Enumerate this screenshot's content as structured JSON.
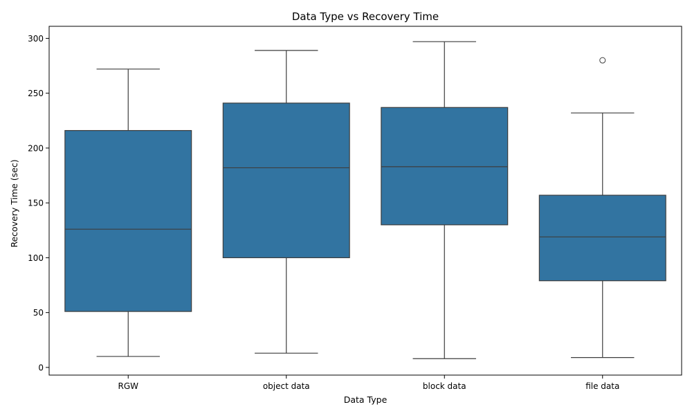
{
  "chart_data": {
    "type": "box",
    "title": "Data Type vs Recovery Time",
    "xlabel": "Data Type",
    "ylabel": "Recovery Time (sec)",
    "ylim": [
      -7,
      311
    ],
    "yticks": [
      0,
      50,
      100,
      150,
      200,
      250,
      300
    ],
    "grid": false,
    "legend": "none",
    "box_color": "#3274a1",
    "line_color": "#3d3d3d",
    "categories": [
      "RGW",
      "object data",
      "block data",
      "file data"
    ],
    "boxes": [
      {
        "category": "RGW",
        "whisker_low": 10,
        "q1": 51,
        "median": 126,
        "q3": 216,
        "whisker_high": 272,
        "outliers": []
      },
      {
        "category": "object data",
        "whisker_low": 13,
        "q1": 100,
        "median": 182,
        "q3": 241,
        "whisker_high": 289,
        "outliers": []
      },
      {
        "category": "block data",
        "whisker_low": 8,
        "q1": 130,
        "median": 183,
        "q3": 237,
        "whisker_high": 297,
        "outliers": []
      },
      {
        "category": "file data",
        "whisker_low": 9,
        "q1": 79,
        "median": 119,
        "q3": 157,
        "whisker_high": 232,
        "outliers": [
          280
        ]
      }
    ]
  }
}
